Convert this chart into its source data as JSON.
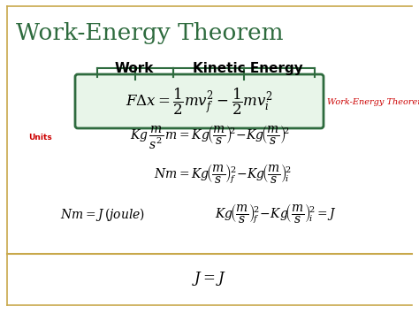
{
  "title": "Work-Energy Theorem",
  "title_color": "#2e6b3e",
  "background_color": "#ffffff",
  "border_color": "#c8a84b",
  "box_bg_color": "#e8f5e9",
  "box_border_color": "#2e6b3e",
  "label_work": "Work",
  "label_ke": "Kinetic Energy",
  "side_label": "Work-Energy Theorem",
  "side_label_color": "#cc0000",
  "units_label": "Units",
  "units_label_color": "#cc0000",
  "figsize": [
    4.74,
    3.55
  ],
  "dpi": 100
}
